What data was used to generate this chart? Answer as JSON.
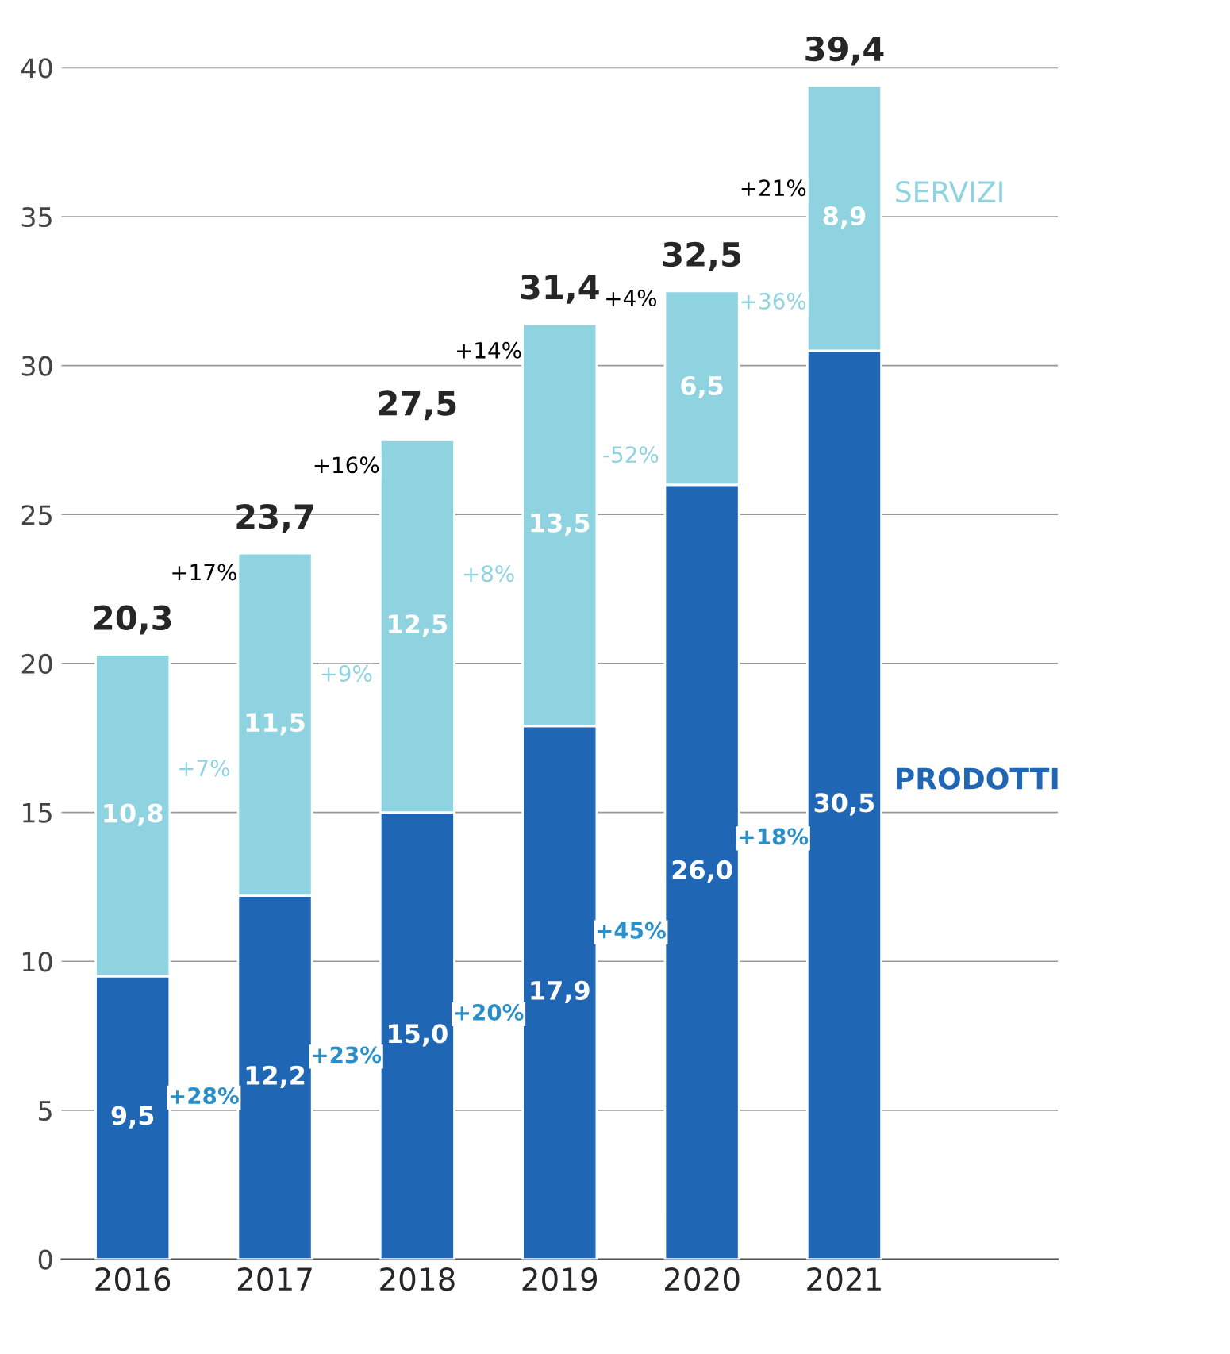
{
  "chart_data": {
    "type": "bar",
    "stacked": true,
    "categories": [
      "2016",
      "2017",
      "2018",
      "2019",
      "2020",
      "2021"
    ],
    "series": [
      {
        "name": "PRODOTTI",
        "color": "#1f66b5",
        "values": [
          9.5,
          12.2,
          15.0,
          17.9,
          26.0,
          30.5
        ],
        "value_labels": [
          "9,5",
          "12,2",
          "15,0",
          "17,9",
          "26,0",
          "30,5"
        ]
      },
      {
        "name": "SERVIZI",
        "color": "#8fd3e0",
        "values": [
          10.8,
          11.5,
          12.5,
          13.5,
          6.5,
          8.9
        ],
        "value_labels": [
          "10,8",
          "11,5",
          "12,5",
          "13,5",
          "6,5",
          "8,9"
        ]
      }
    ],
    "totals": [
      "20,3",
      "23,7",
      "27,5",
      "31,4",
      "32,5",
      "39,4"
    ],
    "ylim": [
      0,
      40
    ],
    "yticks": [
      0,
      5,
      10,
      15,
      20,
      25,
      30,
      35,
      40
    ],
    "grid": "y",
    "annotations": [
      "+17%",
      "+16%",
      "+14%",
      "+4%",
      "+21%",
      "+7%",
      "+9%",
      "+8%",
      "-52%",
      "+36%",
      "+28%",
      "+23%",
      "+20%",
      "+45%",
      "+18%"
    ]
  }
}
